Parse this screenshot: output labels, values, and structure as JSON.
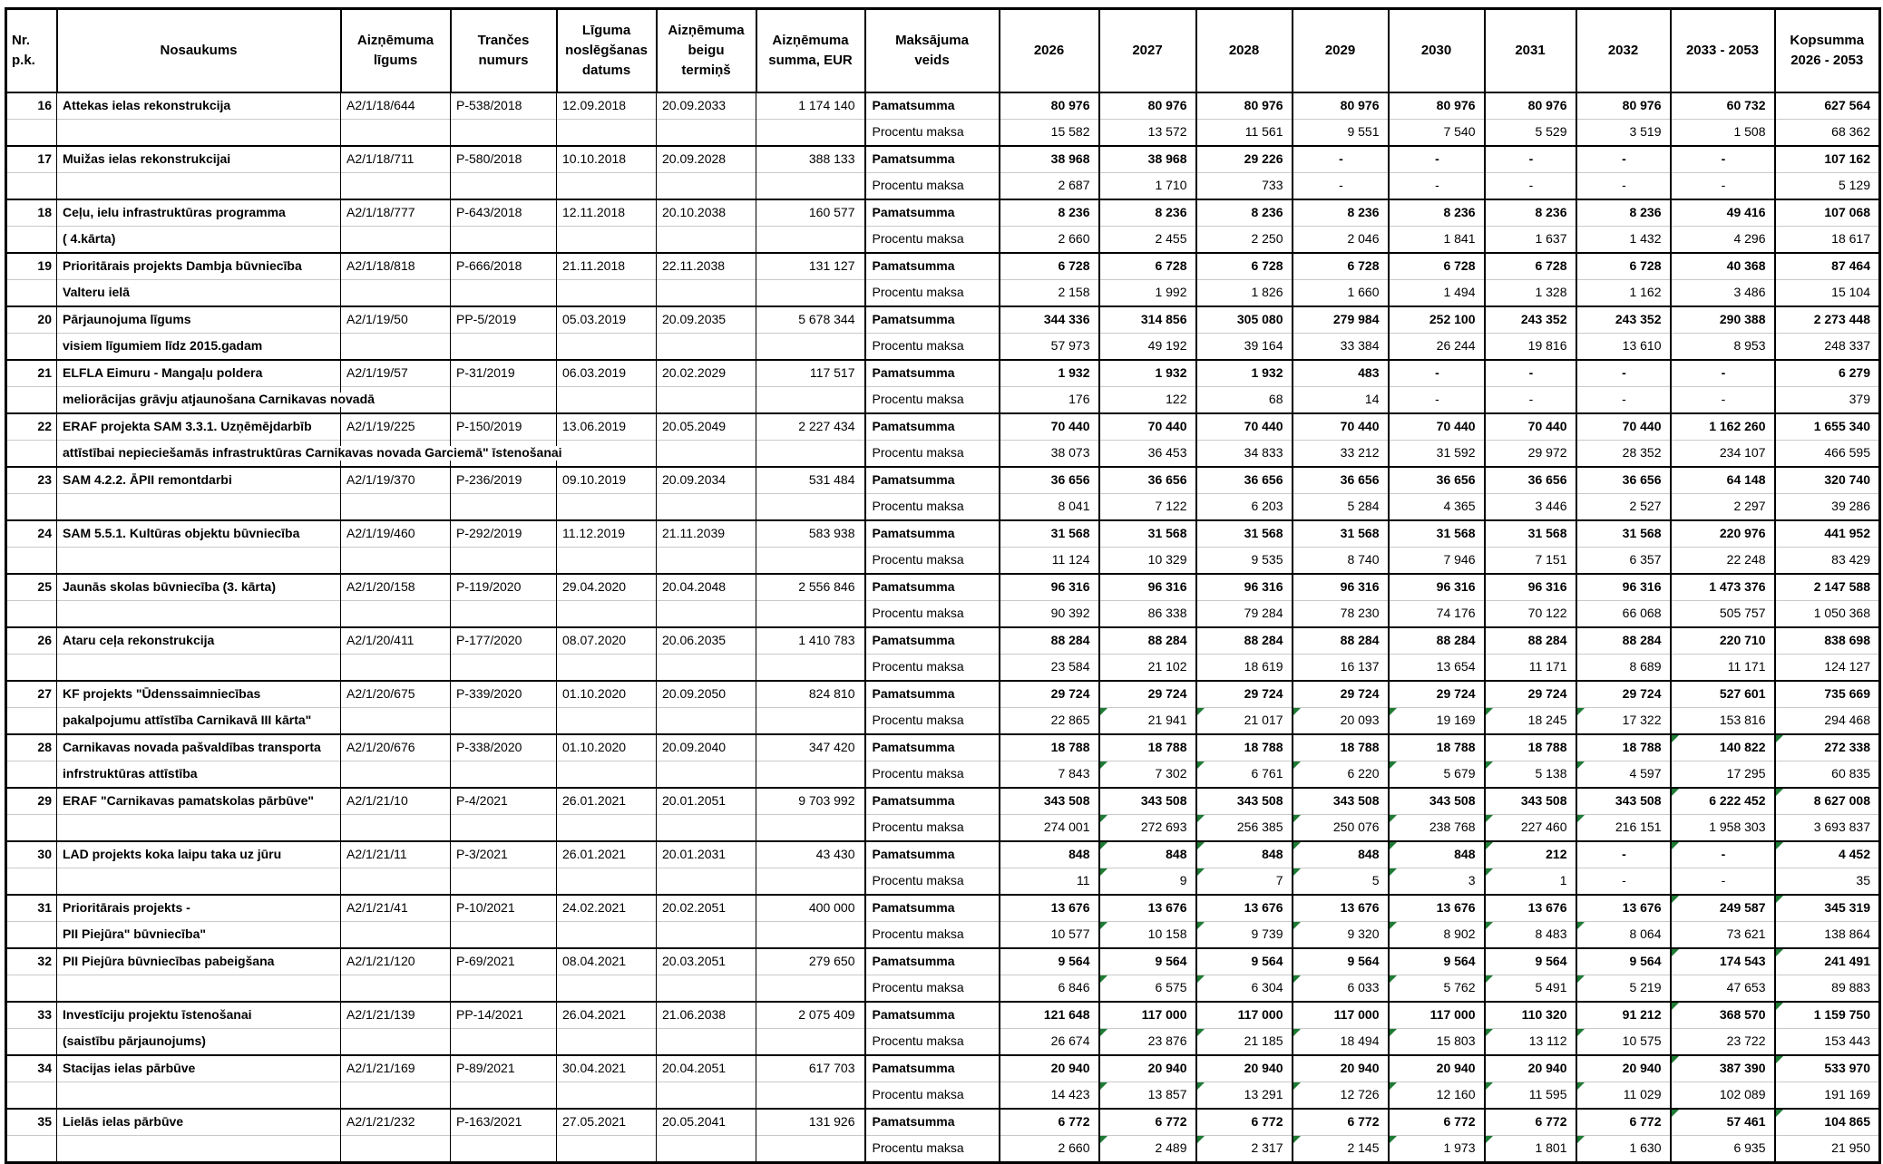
{
  "colors": {
    "marker_green": "#1e7b34",
    "grid_light": "#c9c9c9",
    "border_dark": "#000000"
  },
  "table": {
    "headers": {
      "nr": "Nr.\np.k.",
      "nosaukums": "Nosaukums",
      "ligums": "Aizņēmuma\nlīgums",
      "trance": "Trančes\nnumurs",
      "datums": "Līguma\nnoslēgšanas\ndatums",
      "termins": "Aizņēmuma\nbeigu\ntermiņš",
      "summa": "Aizņēmuma\nsumma, EUR",
      "veids": "Maksājuma\nveids",
      "years": [
        "2026",
        "2027",
        "2028",
        "2029",
        "2030",
        "2031",
        "2032",
        "2033 - 2053"
      ],
      "kopsumma": "Kopsumma\n2026 - 2053"
    },
    "payment_types": {
      "principal": "Pamatsumma",
      "interest": "Procentu maksa"
    },
    "rows": [
      {
        "nr": "16",
        "name": "Attekas ielas rekonstrukcija",
        "name2": "",
        "ligums": "A2/1/18/644",
        "trance": "P-538/2018",
        "datums": "12.09.2018",
        "termins": "20.09.2033",
        "summa": "1 174 140",
        "pam": [
          "80 976",
          "80 976",
          "80 976",
          "80 976",
          "80 976",
          "80 976",
          "80 976",
          "60 732",
          "627 564"
        ],
        "proc": [
          "15 582",
          "13 572",
          "11 561",
          "9 551",
          "7 540",
          "5 529",
          "3 519",
          "1 508",
          "68 362"
        ],
        "pam_gm": [],
        "proc_gm": []
      },
      {
        "nr": "17",
        "name": "Muižas ielas rekonstrukcijai",
        "name2": "",
        "ligums": "A2/1/18/711",
        "trance": "P-580/2018",
        "datums": "10.10.2018",
        "termins": "20.09.2028",
        "summa": "388 133",
        "pam": [
          "38 968",
          "38 968",
          "29 226",
          "-",
          "-",
          "-",
          "-",
          "-",
          "107 162"
        ],
        "proc": [
          "2 687",
          "1 710",
          "733",
          "-",
          "-",
          "-",
          "-",
          "-",
          "5 129"
        ],
        "pam_gm": [],
        "proc_gm": []
      },
      {
        "nr": "18",
        "name": "Ceļu, ielu infrastruktūras programma",
        "name2": "( 4.kārta)",
        "ligums": "A2/1/18/777",
        "trance": "P-643/2018",
        "datums": "12.11.2018",
        "termins": "20.10.2038",
        "summa": "160 577",
        "pam": [
          "8 236",
          "8 236",
          "8 236",
          "8 236",
          "8 236",
          "8 236",
          "8 236",
          "49 416",
          "107 068"
        ],
        "proc": [
          "2 660",
          "2 455",
          "2 250",
          "2 046",
          "1 841",
          "1 637",
          "1 432",
          "4 296",
          "18 617"
        ],
        "pam_gm": [],
        "proc_gm": []
      },
      {
        "nr": "19",
        "name": "Prioritārais projekts Dambja būvniecība",
        "name2": "Valteru ielā",
        "ligums": "A2/1/18/818",
        "trance": "P-666/2018",
        "datums": "21.11.2018",
        "termins": "22.11.2038",
        "summa": "131 127",
        "pam": [
          "6 728",
          "6 728",
          "6 728",
          "6 728",
          "6 728",
          "6 728",
          "6 728",
          "40 368",
          "87 464"
        ],
        "proc": [
          "2 158",
          "1 992",
          "1 826",
          "1 660",
          "1 494",
          "1 328",
          "1 162",
          "3 486",
          "15 104"
        ],
        "pam_gm": [],
        "proc_gm": []
      },
      {
        "nr": "20",
        "name": "Pārjaunojuma līgums",
        "name2": "visiem līgumiem līdz 2015.gadam",
        "ligums": "A2/1/19/50",
        "trance": "PP-5/2019",
        "datums": "05.03.2019",
        "termins": "20.09.2035",
        "summa": "5 678 344",
        "pam": [
          "344 336",
          "314 856",
          "305 080",
          "279 984",
          "252 100",
          "243 352",
          "243 352",
          "290 388",
          "2 273 448"
        ],
        "proc": [
          "57 973",
          "49 192",
          "39 164",
          "33 384",
          "26 244",
          "19 816",
          "13 610",
          "8 953",
          "248 337"
        ],
        "pam_gm": [],
        "proc_gm": []
      },
      {
        "nr": "21",
        "name": "ELFLA Eimuru - Mangaļu poldera",
        "name2": "meliorācijas grāvju atjaunošana Carnikavas novadā",
        "ligums": "A2/1/19/57",
        "trance": "P-31/2019",
        "datums": "06.03.2019",
        "termins": "20.02.2029",
        "summa": "117 517",
        "pam": [
          "1 932",
          "1 932",
          "1 932",
          "483",
          "-",
          "-",
          "-",
          "-",
          "6 279"
        ],
        "proc": [
          "176",
          "122",
          "68",
          "14",
          "-",
          "-",
          "-",
          "-",
          "379"
        ],
        "pam_gm": [],
        "proc_gm": []
      },
      {
        "nr": "22",
        "name": "ERAF projekta SAM 3.3.1. Uzņēmējdarbīb",
        "name2": "attīstībai nepieciešamās infrastruktūras Carnikavas novada Garciemā\" īstenošanai",
        "ligums": "A2/1/19/225",
        "trance": "P-150/2019",
        "datums": "13.06.2019",
        "termins": "20.05.2049",
        "summa": "2 227 434",
        "pam": [
          "70 440",
          "70 440",
          "70 440",
          "70 440",
          "70 440",
          "70 440",
          "70 440",
          "1 162 260",
          "1 655 340"
        ],
        "proc": [
          "38 073",
          "36 453",
          "34 833",
          "33 212",
          "31 592",
          "29 972",
          "28 352",
          "234 107",
          "466 595"
        ],
        "pam_gm": [],
        "proc_gm": []
      },
      {
        "nr": "23",
        "name": "SAM 4.2.2. ĀPII remontdarbi",
        "name2": "",
        "ligums": "A2/1/19/370",
        "trance": "P-236/2019",
        "datums": "09.10.2019",
        "termins": "20.09.2034",
        "summa": "531 484",
        "pam": [
          "36 656",
          "36 656",
          "36 656",
          "36 656",
          "36 656",
          "36 656",
          "36 656",
          "64 148",
          "320 740"
        ],
        "proc": [
          "8 041",
          "7 122",
          "6 203",
          "5 284",
          "4 365",
          "3 446",
          "2 527",
          "2 297",
          "39 286"
        ],
        "pam_gm": [],
        "proc_gm": []
      },
      {
        "nr": "24",
        "name": "SAM 5.5.1. Kultūras objektu būvniecība",
        "name2": "",
        "ligums": "A2/1/19/460",
        "trance": "P-292/2019",
        "datums": "11.12.2019",
        "termins": "21.11.2039",
        "summa": "583 938",
        "pam": [
          "31 568",
          "31 568",
          "31 568",
          "31 568",
          "31 568",
          "31 568",
          "31 568",
          "220 976",
          "441 952"
        ],
        "proc": [
          "11 124",
          "10 329",
          "9 535",
          "8 740",
          "7 946",
          "7 151",
          "6 357",
          "22 248",
          "83 429"
        ],
        "pam_gm": [],
        "proc_gm": []
      },
      {
        "nr": "25",
        "name": "Jaunās skolas būvniecība (3. kārta)",
        "name2": "",
        "ligums": "A2/1/20/158",
        "trance": "P-119/2020",
        "datums": "29.04.2020",
        "termins": "20.04.2048",
        "summa": "2 556 846",
        "pam": [
          "96 316",
          "96 316",
          "96 316",
          "96 316",
          "96 316",
          "96 316",
          "96 316",
          "1 473 376",
          "2 147 588"
        ],
        "proc": [
          "90 392",
          "86 338",
          "79 284",
          "78 230",
          "74 176",
          "70 122",
          "66 068",
          "505 757",
          "1 050 368"
        ],
        "pam_gm": [],
        "proc_gm": []
      },
      {
        "nr": "26",
        "name": "Ataru ceļa rekonstrukcija",
        "name2": "",
        "ligums": "A2/1/20/411",
        "trance": "P-177/2020",
        "datums": "08.07.2020",
        "termins": "20.06.2035",
        "summa": "1 410 783",
        "pam": [
          "88 284",
          "88 284",
          "88 284",
          "88 284",
          "88 284",
          "88 284",
          "88 284",
          "220 710",
          "838 698"
        ],
        "proc": [
          "23 584",
          "21 102",
          "18 619",
          "16 137",
          "13 654",
          "11 171",
          "8 689",
          "11 171",
          "124 127"
        ],
        "pam_gm": [],
        "proc_gm": []
      },
      {
        "nr": "27",
        "name": "KF projekts \"Ūdenssaimniecības",
        "name2": "pakalpojumu attīstība Carnikavā III kārta\"",
        "ligums": "A2/1/20/675",
        "trance": "P-339/2020",
        "datums": "01.10.2020",
        "termins": "20.09.2050",
        "summa": "824 810",
        "pam": [
          "29 724",
          "29 724",
          "29 724",
          "29 724",
          "29 724",
          "29 724",
          "29 724",
          "527 601",
          "735 669"
        ],
        "proc": [
          "22 865",
          "21 941",
          "21 017",
          "20 093",
          "19 169",
          "18 245",
          "17 322",
          "153 816",
          "294 468"
        ],
        "pam_gm": [],
        "proc_gm": [
          1,
          2,
          3,
          4,
          5,
          6
        ]
      },
      {
        "nr": "28",
        "name": "Carnikavas novada pašvaldības transporta",
        "name2": "infrstruktūras attīstība",
        "ligums": "A2/1/20/676",
        "trance": "P-338/2020",
        "datums": "01.10.2020",
        "termins": "20.09.2040",
        "summa": "347 420",
        "pam": [
          "18 788",
          "18 788",
          "18 788",
          "18 788",
          "18 788",
          "18 788",
          "18 788",
          "140 822",
          "272 338"
        ],
        "proc": [
          "7 843",
          "7 302",
          "6 761",
          "6 220",
          "5 679",
          "5 138",
          "4 597",
          "17 295",
          "60 835"
        ],
        "pam_gm": [
          7,
          8
        ],
        "proc_gm": [
          1,
          2,
          3,
          4,
          5,
          6
        ]
      },
      {
        "nr": "29",
        "name": "ERAF \"Carnikavas pamatskolas pārbūve\"",
        "name2": "",
        "ligums": "A2/1/21/10",
        "trance": "P-4/2021",
        "datums": "26.01.2021",
        "termins": "20.01.2051",
        "summa": "9 703 992",
        "pam": [
          "343 508",
          "343 508",
          "343 508",
          "343 508",
          "343 508",
          "343 508",
          "343 508",
          "6 222 452",
          "8 627 008"
        ],
        "proc": [
          "274 001",
          "272 693",
          "256 385",
          "250 076",
          "238 768",
          "227 460",
          "216 151",
          "1 958 303",
          "3 693 837"
        ],
        "pam_gm": [
          7,
          8
        ],
        "proc_gm": [
          1,
          2,
          3,
          4,
          5,
          6
        ]
      },
      {
        "nr": "30",
        "name": "LAD  projekts koka laipu taka uz jūru",
        "name2": "",
        "ligums": "A2/1/21/11",
        "trance": "P-3/2021",
        "datums": "26.01.2021",
        "termins": "20.01.2031",
        "summa": "43 430",
        "pam": [
          "848",
          "848",
          "848",
          "848",
          "848",
          "212",
          "-",
          "-",
          "4 452"
        ],
        "proc": [
          "11",
          "9",
          "7",
          "5",
          "3",
          "1",
          "-",
          "-",
          "35"
        ],
        "pam_gm": [
          1,
          2,
          3,
          4,
          5,
          7,
          8
        ],
        "proc_gm": [
          1,
          2,
          3,
          4,
          5
        ]
      },
      {
        "nr": "31",
        "name": "Prioritārais projekts -",
        "name2": "PII Piejūra\" būvniecība\"",
        "ligums": "A2/1/21/41",
        "trance": "P-10/2021",
        "datums": "24.02.2021",
        "termins": "20.02.2051",
        "summa": "400 000",
        "pam": [
          "13 676",
          "13 676",
          "13 676",
          "13 676",
          "13 676",
          "13 676",
          "13 676",
          "249 587",
          "345 319"
        ],
        "proc": [
          "10 577",
          "10 158",
          "9 739",
          "9 320",
          "8 902",
          "8 483",
          "8 064",
          "73 621",
          "138 864"
        ],
        "pam_gm": [
          7,
          8
        ],
        "proc_gm": [
          1,
          2,
          3,
          4,
          5,
          6
        ]
      },
      {
        "nr": "32",
        "name": "PII Piejūra būvniecības pabeigšana",
        "name2": "",
        "ligums": "A2/1/21/120",
        "trance": "P-69/2021",
        "datums": "08.04.2021",
        "termins": "20.03.2051",
        "summa": "279 650",
        "pam": [
          "9 564",
          "9 564",
          "9 564",
          "9 564",
          "9 564",
          "9 564",
          "9 564",
          "174 543",
          "241 491"
        ],
        "proc": [
          "6 846",
          "6 575",
          "6 304",
          "6 033",
          "5 762",
          "5 491",
          "5 219",
          "47 653",
          "89 883"
        ],
        "pam_gm": [
          7,
          8
        ],
        "proc_gm": [
          1,
          2,
          3,
          4,
          5,
          6
        ]
      },
      {
        "nr": "33",
        "name": "Investīciju projektu īstenošanai",
        "name2": "(saistību pārjaunojums)",
        "ligums": "A2/1/21/139",
        "trance": "PP-14/2021",
        "datums": "26.04.2021",
        "termins": "21.06.2038",
        "summa": "2 075 409",
        "pam": [
          "121 648",
          "117 000",
          "117 000",
          "117 000",
          "117 000",
          "110 320",
          "91 212",
          "368 570",
          "1 159 750"
        ],
        "proc": [
          "26 674",
          "23 876",
          "21 185",
          "18 494",
          "15 803",
          "13 112",
          "10 575",
          "23 722",
          "153 443"
        ],
        "pam_gm": [
          7,
          8
        ],
        "proc_gm": [
          1,
          2,
          3,
          4,
          5,
          6
        ]
      },
      {
        "nr": "34",
        "name": "Stacijas ielas pārbūve",
        "name2": "",
        "ligums": "A2/1/21/169",
        "trance": "P-89/2021",
        "datums": "30.04.2021",
        "termins": "20.04.2051",
        "summa": "617 703",
        "pam": [
          "20 940",
          "20 940",
          "20 940",
          "20 940",
          "20 940",
          "20 940",
          "20 940",
          "387 390",
          "533 970"
        ],
        "proc": [
          "14 423",
          "13 857",
          "13 291",
          "12 726",
          "12 160",
          "11 595",
          "11 029",
          "102 089",
          "191 169"
        ],
        "pam_gm": [
          7,
          8
        ],
        "proc_gm": [
          1,
          2,
          3,
          4,
          5,
          6
        ]
      },
      {
        "nr": "35",
        "name": "Lielās ielas pārbūve",
        "name2": "",
        "ligums": "A2/1/21/232",
        "trance": "P-163/2021",
        "datums": "27.05.2021",
        "termins": "20.05.2041",
        "summa": "131 926",
        "pam": [
          "6 772",
          "6 772",
          "6 772",
          "6 772",
          "6 772",
          "6 772",
          "6 772",
          "57 461",
          "104 865"
        ],
        "proc": [
          "2 660",
          "2 489",
          "2 317",
          "2 145",
          "1 973",
          "1 801",
          "1 630",
          "6 935",
          "21 950"
        ],
        "pam_gm": [
          7,
          8
        ],
        "proc_gm": [
          1,
          2,
          3,
          4,
          5,
          6
        ]
      }
    ]
  }
}
